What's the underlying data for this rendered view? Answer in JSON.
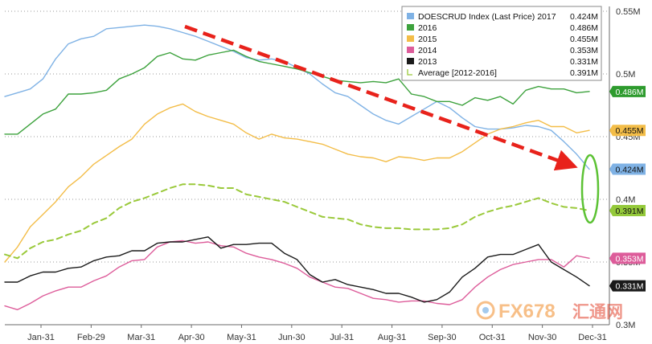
{
  "chart_data": {
    "type": "line",
    "title": "",
    "xlabel": "",
    "ylabel": "",
    "x_ticks": [
      "Jan-31",
      "Feb-29",
      "Mar-31",
      "Apr-30",
      "May-31",
      "Jun-30",
      "Jul-31",
      "Aug-31",
      "Sep-30",
      "Oct-31",
      "Nov-30",
      "Dec-31"
    ],
    "y_ticks": [
      "0.3M",
      "0.35M",
      "0.4M",
      "0.45M",
      "0.5M",
      "0.55M"
    ],
    "ylim": [
      0.3,
      0.55
    ],
    "grid": "horizontal-dotted",
    "legend_position": "top-right",
    "series": [
      {
        "name": "DOESCRUD Index (Last Price) 2017",
        "last_value": "0.424M",
        "color": "#7fb2e5",
        "dash": false,
        "values": [
          0.482,
          0.485,
          0.488,
          0.496,
          0.512,
          0.524,
          0.528,
          0.53,
          0.536,
          0.537,
          0.538,
          0.539,
          0.538,
          0.536,
          0.533,
          0.53,
          0.526,
          0.522,
          0.518,
          0.513,
          0.511,
          0.512,
          0.51,
          0.505,
          0.5,
          0.492,
          0.485,
          0.482,
          0.475,
          0.468,
          0.463,
          0.46,
          0.466,
          0.472,
          0.478,
          0.473,
          0.465,
          0.458,
          0.456,
          0.456,
          0.457,
          0.459,
          0.458,
          0.455,
          0.446,
          0.436,
          0.424
        ]
      },
      {
        "name": "2016",
        "last_value": "0.486M",
        "color": "#3da23d",
        "dash": false,
        "values": [
          0.452,
          0.452,
          0.46,
          0.468,
          0.472,
          0.484,
          0.484,
          0.485,
          0.487,
          0.496,
          0.5,
          0.505,
          0.514,
          0.517,
          0.512,
          0.511,
          0.515,
          0.517,
          0.519,
          0.514,
          0.51,
          0.508,
          0.506,
          0.504,
          0.501,
          0.498,
          0.495,
          0.494,
          0.493,
          0.494,
          0.493,
          0.496,
          0.484,
          0.482,
          0.478,
          0.478,
          0.475,
          0.481,
          0.479,
          0.482,
          0.476,
          0.487,
          0.49,
          0.488,
          0.488,
          0.485,
          0.486
        ]
      },
      {
        "name": "2015",
        "last_value": "0.455M",
        "color": "#f3bd48",
        "dash": false,
        "values": [
          0.35,
          0.362,
          0.378,
          0.388,
          0.398,
          0.41,
          0.418,
          0.428,
          0.435,
          0.442,
          0.448,
          0.46,
          0.468,
          0.473,
          0.476,
          0.47,
          0.466,
          0.463,
          0.46,
          0.453,
          0.448,
          0.452,
          0.449,
          0.448,
          0.446,
          0.444,
          0.44,
          0.436,
          0.434,
          0.433,
          0.43,
          0.434,
          0.433,
          0.431,
          0.433,
          0.433,
          0.438,
          0.445,
          0.452,
          0.456,
          0.458,
          0.461,
          0.463,
          0.458,
          0.458,
          0.453,
          0.455
        ]
      },
      {
        "name": "2014",
        "last_value": "0.353M",
        "color": "#dd5c9a",
        "dash": false,
        "values": [
          0.315,
          0.312,
          0.317,
          0.323,
          0.327,
          0.33,
          0.33,
          0.335,
          0.339,
          0.346,
          0.351,
          0.352,
          0.362,
          0.366,
          0.367,
          0.365,
          0.366,
          0.363,
          0.362,
          0.357,
          0.354,
          0.352,
          0.349,
          0.345,
          0.338,
          0.334,
          0.33,
          0.329,
          0.325,
          0.321,
          0.32,
          0.318,
          0.319,
          0.319,
          0.317,
          0.316,
          0.32,
          0.33,
          0.338,
          0.344,
          0.348,
          0.35,
          0.352,
          0.352,
          0.346,
          0.355,
          0.353
        ]
      },
      {
        "name": "2013",
        "last_value": "0.331M",
        "color": "#1a1a1a",
        "dash": false,
        "values": [
          0.334,
          0.334,
          0.339,
          0.342,
          0.342,
          0.345,
          0.346,
          0.351,
          0.354,
          0.355,
          0.359,
          0.359,
          0.365,
          0.366,
          0.366,
          0.368,
          0.37,
          0.361,
          0.364,
          0.364,
          0.365,
          0.365,
          0.357,
          0.352,
          0.34,
          0.334,
          0.336,
          0.332,
          0.33,
          0.328,
          0.325,
          0.325,
          0.322,
          0.318,
          0.32,
          0.326,
          0.338,
          0.345,
          0.354,
          0.356,
          0.356,
          0.36,
          0.364,
          0.35,
          0.344,
          0.338,
          0.331
        ]
      },
      {
        "name": "Average [2012-2016]",
        "last_value": "0.391M",
        "color": "#9ac93a",
        "dash": true,
        "values": [
          0.356,
          0.353,
          0.361,
          0.366,
          0.368,
          0.372,
          0.375,
          0.381,
          0.385,
          0.393,
          0.398,
          0.401,
          0.405,
          0.409,
          0.412,
          0.412,
          0.411,
          0.409,
          0.409,
          0.404,
          0.402,
          0.4,
          0.398,
          0.394,
          0.39,
          0.386,
          0.385,
          0.384,
          0.38,
          0.378,
          0.377,
          0.377,
          0.376,
          0.376,
          0.376,
          0.377,
          0.38,
          0.386,
          0.39,
          0.393,
          0.395,
          0.398,
          0.401,
          0.397,
          0.394,
          0.393,
          0.391
        ]
      }
    ],
    "annotations": [
      {
        "kind": "trend-arrow",
        "color": "#e8221b"
      },
      {
        "kind": "ellipse-highlight",
        "color": "#5cc234"
      }
    ],
    "value_tags": [
      {
        "text": "0.486M",
        "bg": "#2e9b2e",
        "fg": "#ffffff"
      },
      {
        "text": "0.455M",
        "bg": "#f3bd48",
        "fg": "#111111"
      },
      {
        "text": "0.424M",
        "bg": "#7fb2e5",
        "fg": "#111111"
      },
      {
        "text": "0.391M",
        "bg": "#94c93a",
        "fg": "#111111"
      },
      {
        "text": "0.353M",
        "bg": "#dd5c9a",
        "fg": "#ffffff"
      },
      {
        "text": "0.331M",
        "bg": "#1a1a1a",
        "fg": "#ffffff"
      }
    ]
  },
  "watermark": {
    "brand": "FX678",
    "tail": "汇通网"
  }
}
